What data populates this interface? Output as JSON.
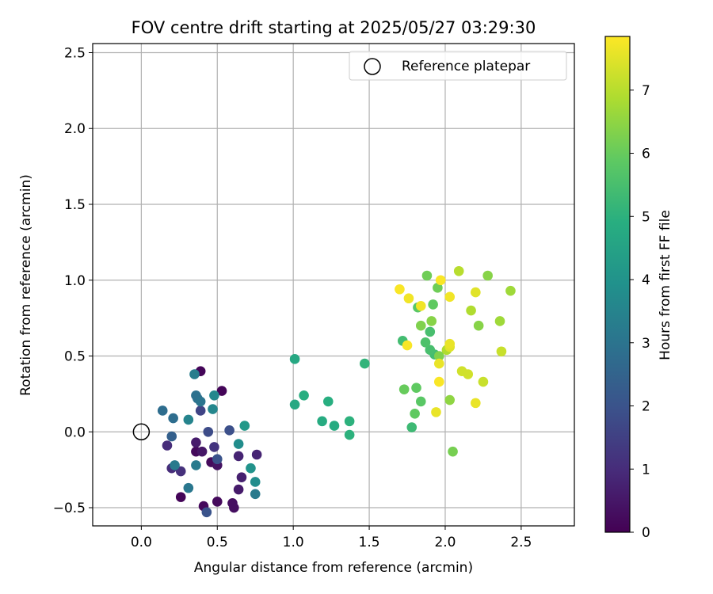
{
  "chart_data": {
    "type": "scatter",
    "title": "FOV centre drift starting at 2025/05/27 03:29:30",
    "xlabel": "Angular distance from reference (arcmin)",
    "ylabel": "Rotation from reference (arcmin)",
    "xlim": [
      -0.32,
      2.85
    ],
    "ylim": [
      -0.62,
      2.56
    ],
    "xticks": [
      0.0,
      0.5,
      1.0,
      1.5,
      2.0,
      2.5
    ],
    "xtick_labels": [
      "0.0",
      "0.5",
      "1.0",
      "1.5",
      "2.0",
      "2.5"
    ],
    "yticks": [
      -0.5,
      0.0,
      0.5,
      1.0,
      1.5,
      2.0,
      2.5
    ],
    "ytick_labels": [
      "−0.5",
      "0.0",
      "0.5",
      "1.0",
      "1.5",
      "2.0",
      "2.5"
    ],
    "grid": true,
    "legend": {
      "placement": "top-right",
      "entries": [
        "Reference platepar"
      ]
    },
    "reference_point": {
      "x": 0.0,
      "y": 0.0,
      "label": "Reference platepar"
    },
    "colorbar": {
      "label": "Hours from first FF file",
      "range": [
        0,
        7.85
      ],
      "ticks": [
        0,
        1,
        2,
        3,
        4,
        5,
        6,
        7
      ],
      "tick_labels": [
        "0",
        "1",
        "2",
        "3",
        "4",
        "5",
        "6",
        "7"
      ],
      "colormap": "viridis"
    },
    "points": [
      {
        "x": 0.39,
        "y": 0.4,
        "h": 0.1
      },
      {
        "x": 0.53,
        "y": 0.27,
        "h": 0.1
      },
      {
        "x": 0.26,
        "y": -0.43,
        "h": 0.1
      },
      {
        "x": 0.36,
        "y": -0.13,
        "h": 0.2
      },
      {
        "x": 0.41,
        "y": -0.49,
        "h": 0.2
      },
      {
        "x": 0.46,
        "y": -0.2,
        "h": 0.2
      },
      {
        "x": 0.5,
        "y": -0.46,
        "h": 0.2
      },
      {
        "x": 0.6,
        "y": -0.47,
        "h": 0.3
      },
      {
        "x": 0.61,
        "y": -0.5,
        "h": 0.3
      },
      {
        "x": 0.5,
        "y": -0.22,
        "h": 0.4
      },
      {
        "x": 0.4,
        "y": -0.13,
        "h": 0.5
      },
      {
        "x": 0.36,
        "y": -0.07,
        "h": 0.6
      },
      {
        "x": 0.64,
        "y": -0.38,
        "h": 0.6
      },
      {
        "x": 0.66,
        "y": -0.3,
        "h": 0.7
      },
      {
        "x": 0.64,
        "y": -0.16,
        "h": 0.8
      },
      {
        "x": 0.76,
        "y": -0.15,
        "h": 0.8
      },
      {
        "x": 0.17,
        "y": -0.09,
        "h": 1.0
      },
      {
        "x": 0.2,
        "y": -0.24,
        "h": 1.0
      },
      {
        "x": 0.26,
        "y": -0.26,
        "h": 1.1
      },
      {
        "x": 0.48,
        "y": -0.1,
        "h": 1.2
      },
      {
        "x": 0.39,
        "y": 0.14,
        "h": 1.6
      },
      {
        "x": 0.44,
        "y": 0.0,
        "h": 1.8
      },
      {
        "x": 0.58,
        "y": 0.01,
        "h": 1.9
      },
      {
        "x": 0.43,
        "y": -0.53,
        "h": 2.0
      },
      {
        "x": 0.5,
        "y": -0.18,
        "h": 2.0
      },
      {
        "x": 0.2,
        "y": -0.03,
        "h": 2.4
      },
      {
        "x": 0.14,
        "y": 0.14,
        "h": 2.8
      },
      {
        "x": 0.21,
        "y": 0.09,
        "h": 2.8
      },
      {
        "x": 0.36,
        "y": 0.24,
        "h": 2.9
      },
      {
        "x": 0.37,
        "y": 0.22,
        "h": 2.9
      },
      {
        "x": 0.39,
        "y": 0.2,
        "h": 3.0
      },
      {
        "x": 0.31,
        "y": -0.37,
        "h": 3.1
      },
      {
        "x": 0.22,
        "y": -0.22,
        "h": 3.2
      },
      {
        "x": 0.36,
        "y": -0.22,
        "h": 3.2
      },
      {
        "x": 0.75,
        "y": -0.41,
        "h": 3.2
      },
      {
        "x": 0.35,
        "y": 0.38,
        "h": 3.3
      },
      {
        "x": 0.31,
        "y": 0.08,
        "h": 3.5
      },
      {
        "x": 0.48,
        "y": 0.24,
        "h": 3.6
      },
      {
        "x": 0.47,
        "y": 0.15,
        "h": 3.6
      },
      {
        "x": 0.75,
        "y": -0.33,
        "h": 3.8
      },
      {
        "x": 0.64,
        "y": -0.08,
        "h": 3.8
      },
      {
        "x": 0.72,
        "y": -0.24,
        "h": 4.0
      },
      {
        "x": 0.68,
        "y": 0.04,
        "h": 4.2
      },
      {
        "x": 1.01,
        "y": 0.48,
        "h": 4.7
      },
      {
        "x": 1.01,
        "y": 0.18,
        "h": 4.7
      },
      {
        "x": 1.07,
        "y": 0.24,
        "h": 4.9
      },
      {
        "x": 1.23,
        "y": 0.2,
        "h": 4.9
      },
      {
        "x": 1.19,
        "y": 0.07,
        "h": 4.8
      },
      {
        "x": 1.27,
        "y": 0.04,
        "h": 4.8
      },
      {
        "x": 1.37,
        "y": 0.07,
        "h": 5.0
      },
      {
        "x": 1.37,
        "y": -0.02,
        "h": 5.0
      },
      {
        "x": 1.47,
        "y": 0.45,
        "h": 5.1
      },
      {
        "x": 1.78,
        "y": 0.03,
        "h": 5.3
      },
      {
        "x": 1.72,
        "y": 0.6,
        "h": 5.4
      },
      {
        "x": 1.93,
        "y": 0.51,
        "h": 5.4
      },
      {
        "x": 1.9,
        "y": 0.54,
        "h": 5.5
      },
      {
        "x": 1.9,
        "y": 0.66,
        "h": 5.5
      },
      {
        "x": 1.87,
        "y": 0.59,
        "h": 5.6
      },
      {
        "x": 1.82,
        "y": 0.82,
        "h": 5.8
      },
      {
        "x": 1.84,
        "y": 0.2,
        "h": 5.8
      },
      {
        "x": 1.8,
        "y": 0.12,
        "h": 5.9
      },
      {
        "x": 1.81,
        "y": 0.29,
        "h": 5.9
      },
      {
        "x": 1.73,
        "y": 0.28,
        "h": 6.0
      },
      {
        "x": 1.92,
        "y": 0.84,
        "h": 5.9
      },
      {
        "x": 1.88,
        "y": 1.03,
        "h": 6.1
      },
      {
        "x": 1.95,
        "y": 0.95,
        "h": 6.1
      },
      {
        "x": 1.84,
        "y": 0.7,
        "h": 6.3
      },
      {
        "x": 1.91,
        "y": 0.73,
        "h": 6.4
      },
      {
        "x": 1.96,
        "y": 0.5,
        "h": 6.3
      },
      {
        "x": 2.05,
        "y": -0.13,
        "h": 6.2
      },
      {
        "x": 2.03,
        "y": 0.21,
        "h": 6.5
      },
      {
        "x": 2.22,
        "y": 0.7,
        "h": 6.4
      },
      {
        "x": 2.28,
        "y": 1.03,
        "h": 6.4
      },
      {
        "x": 2.43,
        "y": 0.93,
        "h": 6.7
      },
      {
        "x": 2.36,
        "y": 0.73,
        "h": 6.7
      },
      {
        "x": 2.17,
        "y": 0.8,
        "h": 6.9
      },
      {
        "x": 2.09,
        "y": 1.06,
        "h": 7.0
      },
      {
        "x": 2.01,
        "y": 0.54,
        "h": 6.9
      },
      {
        "x": 2.37,
        "y": 0.53,
        "h": 7.2
      },
      {
        "x": 2.25,
        "y": 0.33,
        "h": 7.2
      },
      {
        "x": 2.15,
        "y": 0.38,
        "h": 7.3
      },
      {
        "x": 2.11,
        "y": 0.4,
        "h": 7.3
      },
      {
        "x": 2.03,
        "y": 0.56,
        "h": 7.5
      },
      {
        "x": 2.03,
        "y": 0.58,
        "h": 7.6
      },
      {
        "x": 1.96,
        "y": 0.45,
        "h": 7.6
      },
      {
        "x": 2.2,
        "y": 0.92,
        "h": 7.5
      },
      {
        "x": 2.2,
        "y": 0.19,
        "h": 7.6
      },
      {
        "x": 1.94,
        "y": 0.13,
        "h": 7.6
      },
      {
        "x": 1.96,
        "y": 0.33,
        "h": 7.8
      },
      {
        "x": 1.84,
        "y": 0.83,
        "h": 7.7
      },
      {
        "x": 1.76,
        "y": 0.88,
        "h": 7.7
      },
      {
        "x": 1.7,
        "y": 0.94,
        "h": 7.8
      },
      {
        "x": 1.75,
        "y": 0.57,
        "h": 7.8
      },
      {
        "x": 1.97,
        "y": 1.0,
        "h": 7.8
      },
      {
        "x": 2.03,
        "y": 0.89,
        "h": 7.7
      }
    ]
  }
}
